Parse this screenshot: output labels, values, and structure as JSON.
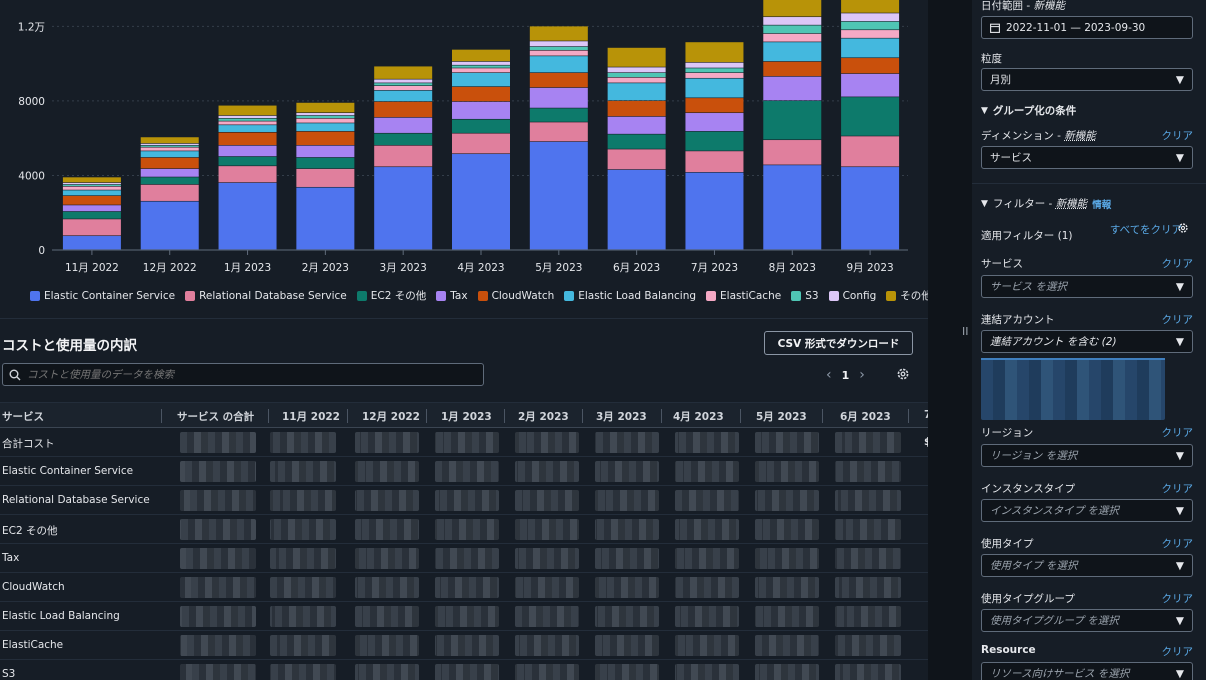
{
  "chart_data": {
    "type": "bar",
    "stacked": true,
    "categories": [
      "11月 2022",
      "12月 2022",
      "1月 2023",
      "2月 2023",
      "3月 2023",
      "4月 2023",
      "5月 2023",
      "6月 2023",
      "7月 2023",
      "8月 2023",
      "9月 2023"
    ],
    "yticks": [
      "0",
      "4000",
      "8000",
      "1.2万"
    ],
    "ylim": [
      0,
      13200
    ],
    "series": [
      {
        "name": "Elastic Container Service",
        "color": "#4f74ee",
        "values": [
          750,
          2600,
          3600,
          3350,
          4450,
          5150,
          5800,
          4300,
          4150,
          4550,
          4450
        ]
      },
      {
        "name": "Relational Database Service",
        "color": "#e07f9d",
        "values": [
          900,
          900,
          900,
          1000,
          1150,
          1100,
          1050,
          1100,
          1150,
          1350,
          1650
        ]
      },
      {
        "name": "EC2 その他",
        "color": "#0d7a6b",
        "values": [
          400,
          400,
          500,
          600,
          650,
          750,
          750,
          800,
          1050,
          2100,
          2100
        ]
      },
      {
        "name": "Tax",
        "color": "#a783f2",
        "values": [
          350,
          450,
          600,
          650,
          850,
          950,
          1100,
          950,
          1000,
          1300,
          1250
        ]
      },
      {
        "name": "CloudWatch",
        "color": "#c9500c",
        "values": [
          500,
          600,
          700,
          750,
          850,
          800,
          800,
          850,
          800,
          800,
          850
        ]
      },
      {
        "name": "Elastic Load Balancing",
        "color": "#44b8de",
        "values": [
          300,
          350,
          400,
          450,
          600,
          750,
          900,
          950,
          1050,
          1050,
          1050
        ]
      },
      {
        "name": "ElastiCache",
        "color": "#f5a9c5",
        "values": [
          200,
          200,
          200,
          250,
          250,
          250,
          300,
          300,
          300,
          450,
          450
        ]
      },
      {
        "name": "S3",
        "color": "#4fc5b4",
        "values": [
          100,
          100,
          150,
          150,
          150,
          150,
          200,
          250,
          250,
          450,
          450
        ]
      },
      {
        "name": "Config",
        "color": "#dcc6f7",
        "values": [
          100,
          100,
          150,
          150,
          200,
          200,
          300,
          300,
          300,
          450,
          450
        ]
      },
      {
        "name": "その他",
        "color": "#b89308",
        "values": [
          300,
          350,
          550,
          550,
          700,
          650,
          800,
          1050,
          1100,
          1050,
          1050
        ]
      }
    ]
  },
  "breakdown": {
    "title": "コストと使用量の内訳",
    "csv_button": "CSV 形式でダウンロード",
    "search_placeholder": "コストと使用量のデータを検索",
    "page": "1",
    "columns": [
      "サービス",
      "サービス の合計",
      "11月 2022",
      "12月 2022",
      "1月 2023",
      "2月 2023",
      "3月 2023",
      "4月 2023",
      "5月 2023",
      "6月 2023",
      "7"
    ],
    "rows": [
      "合計コスト",
      "Elastic Container Service",
      "Relational Database Service",
      "EC2 その他",
      "Tax",
      "CloudWatch",
      "Elastic Load Balancing",
      "ElastiCache",
      "S3"
    ],
    "partial_value": "$"
  },
  "sidebar": {
    "date_range_label": "日付範囲",
    "date_range_new": "新機能",
    "date_range_value": "2022-11-01 — 2023-09-30",
    "granularity_label": "粒度",
    "granularity_value": "月別",
    "group_by_title": "グループ化の条件",
    "dimension_label": "ディメンション",
    "dimension_new": "新機能",
    "dimension_value": "サービス",
    "clear": "クリア",
    "filters_title": "フィルター",
    "filters_new": "新機能",
    "filters_info": "情報",
    "clear_all": "すべてをクリア",
    "applied_filters": "適用フィルター (1)",
    "service_label": "サービス",
    "service_placeholder": "サービス を選択",
    "linked_account_label": "連結アカウント",
    "linked_account_value": "連結アカウント を含む (2)",
    "region_label": "リージョン",
    "region_placeholder": "リージョン を選択",
    "instance_type_label": "インスタンスタイプ",
    "instance_type_placeholder": "インスタンスタイプ を選択",
    "usage_type_label": "使用タイプ",
    "usage_type_placeholder": "使用タイプ を選択",
    "usage_type_group_label": "使用タイプグループ",
    "usage_type_group_placeholder": "使用タイプグループ を選択",
    "resource_label": "Resource",
    "resource_placeholder": "リソース向けサービス を選択"
  }
}
